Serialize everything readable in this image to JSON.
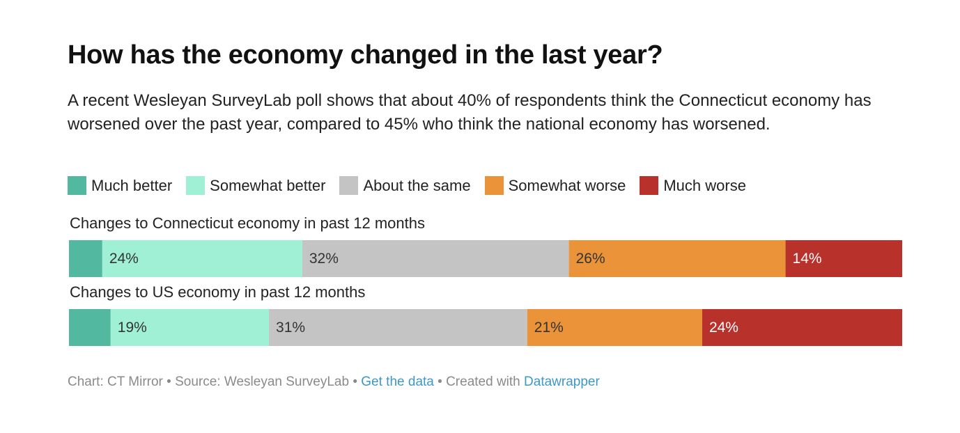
{
  "chart_data": {
    "type": "bar",
    "stacked": true,
    "orientation": "horizontal",
    "title": "How has the economy changed in the last year?",
    "subtitle": "A recent Wesleyan SurveyLab poll shows that about 40% of respondents think the Connecticut economy has worsened over the past year, compared to 45% who think the national economy has worsened.",
    "categories": [
      "Changes to Connecticut economy in past 12 months",
      "Changes to US economy in past 12 months"
    ],
    "xlim": [
      0,
      100
    ],
    "series": [
      {
        "name": "Much better",
        "color": "#52b9a0",
        "values": [
          4,
          5
        ],
        "value_labels": [
          null,
          null
        ]
      },
      {
        "name": "Somewhat better",
        "color": "#9ff0d4",
        "values": [
          24,
          19
        ],
        "value_labels": [
          "24%",
          "19%"
        ]
      },
      {
        "name": "About the same",
        "color": "#c4c4c4",
        "values": [
          32,
          31
        ],
        "value_labels": [
          "32%",
          "31%"
        ]
      },
      {
        "name": "Somewhat worse",
        "color": "#ea9339",
        "values": [
          26,
          21
        ],
        "value_labels": [
          "26%",
          "21%"
        ]
      },
      {
        "name": "Much worse",
        "color": "#b8312b",
        "values": [
          14,
          24
        ],
        "value_labels": [
          "14%",
          "24%"
        ]
      }
    ],
    "footer": {
      "credit": "Chart: CT Mirror",
      "separator": "•",
      "source": "Source: Wesleyan SurveyLab",
      "data_link": "Get the data",
      "created": "Created with",
      "tool": "Datawrapper"
    }
  }
}
